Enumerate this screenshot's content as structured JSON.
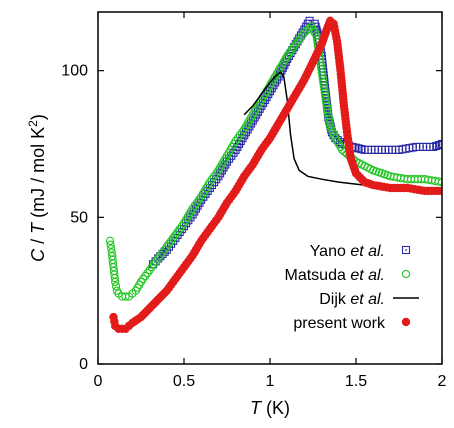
{
  "chart_data": {
    "type": "scatter",
    "xlim": [
      0,
      2
    ],
    "ylim": [
      0,
      120
    ],
    "xticks": [
      0,
      0.5,
      1,
      1.5,
      2
    ],
    "xtick_labels": [
      "0",
      "0.5",
      "1",
      "1.5",
      "2"
    ],
    "yticks": [
      0,
      50,
      100
    ],
    "ytick_labels": [
      "0",
      "50",
      "100"
    ],
    "xlabel": {
      "italic": "T",
      "rest": " (K)"
    },
    "ylabel": {
      "italic1": "C",
      "mid": " / ",
      "italic2": "T",
      "rest": " (mJ / mol K",
      "sup": "2",
      "close": ")"
    },
    "grid": false,
    "legend_position": "bottom-right",
    "series": [
      {
        "key": "yano",
        "name_plain": "Yano ",
        "name_italic": "et al.",
        "marker": "open-square-dot",
        "color": "#2a2aa8",
        "points": [
          [
            0.32,
            34
          ],
          [
            0.35,
            36
          ],
          [
            0.4,
            39
          ],
          [
            0.45,
            43
          ],
          [
            0.5,
            47
          ],
          [
            0.55,
            51
          ],
          [
            0.6,
            56
          ],
          [
            0.65,
            60
          ],
          [
            0.7,
            64
          ],
          [
            0.75,
            69
          ],
          [
            0.8,
            73
          ],
          [
            0.85,
            78
          ],
          [
            0.9,
            83
          ],
          [
            0.95,
            88
          ],
          [
            1.0,
            93
          ],
          [
            1.05,
            98
          ],
          [
            1.1,
            104
          ],
          [
            1.15,
            109
          ],
          [
            1.2,
            114
          ],
          [
            1.23,
            117
          ],
          [
            1.26,
            116
          ],
          [
            1.28,
            112
          ],
          [
            1.3,
            105
          ],
          [
            1.32,
            94
          ],
          [
            1.34,
            84
          ],
          [
            1.36,
            79
          ],
          [
            1.38,
            77
          ],
          [
            1.42,
            75
          ],
          [
            1.48,
            74
          ],
          [
            1.55,
            73
          ],
          [
            1.65,
            73
          ],
          [
            1.75,
            73
          ],
          [
            1.85,
            74
          ],
          [
            1.95,
            74
          ],
          [
            2.0,
            75
          ]
        ]
      },
      {
        "key": "matsuda",
        "name_plain": "Matsuda ",
        "name_italic": "et al.",
        "marker": "open-circle",
        "color": "#22c422",
        "points": [
          [
            0.07,
            42
          ],
          [
            0.08,
            38
          ],
          [
            0.09,
            33
          ],
          [
            0.1,
            28
          ],
          [
            0.11,
            25
          ],
          [
            0.12,
            24
          ],
          [
            0.14,
            23
          ],
          [
            0.16,
            23
          ],
          [
            0.18,
            23
          ],
          [
            0.2,
            24
          ],
          [
            0.22,
            25
          ],
          [
            0.25,
            28
          ],
          [
            0.3,
            32
          ],
          [
            0.35,
            36
          ],
          [
            0.4,
            40
          ],
          [
            0.45,
            44
          ],
          [
            0.5,
            48
          ],
          [
            0.55,
            53
          ],
          [
            0.6,
            57
          ],
          [
            0.65,
            62
          ],
          [
            0.7,
            66
          ],
          [
            0.75,
            71
          ],
          [
            0.8,
            76
          ],
          [
            0.85,
            80
          ],
          [
            0.9,
            85
          ],
          [
            0.95,
            90
          ],
          [
            1.0,
            95
          ],
          [
            1.05,
            100
          ],
          [
            1.1,
            105
          ],
          [
            1.15,
            109
          ],
          [
            1.2,
            113
          ],
          [
            1.24,
            115
          ],
          [
            1.27,
            112
          ],
          [
            1.29,
            104
          ],
          [
            1.31,
            96
          ],
          [
            1.33,
            88
          ],
          [
            1.35,
            81
          ],
          [
            1.38,
            77
          ],
          [
            1.42,
            73
          ],
          [
            1.5,
            69
          ],
          [
            1.6,
            66
          ],
          [
            1.7,
            64
          ],
          [
            1.8,
            63
          ],
          [
            1.9,
            63
          ],
          [
            2.0,
            62
          ]
        ]
      },
      {
        "key": "dijk",
        "name_plain": "Dijk ",
        "name_italic": "et al.",
        "marker": "line",
        "color": "#000000",
        "points": [
          [
            0.85,
            85
          ],
          [
            0.9,
            88
          ],
          [
            0.95,
            92
          ],
          [
            1.0,
            96
          ],
          [
            1.03,
            98
          ],
          [
            1.06,
            99.5
          ],
          [
            1.08,
            98
          ],
          [
            1.1,
            90
          ],
          [
            1.12,
            78
          ],
          [
            1.14,
            70
          ],
          [
            1.17,
            66
          ],
          [
            1.22,
            64
          ],
          [
            1.3,
            63
          ],
          [
            1.4,
            62
          ],
          [
            1.55,
            61
          ],
          [
            1.7,
            61
          ],
          [
            1.85,
            60
          ],
          [
            2.0,
            60
          ]
        ]
      },
      {
        "key": "present",
        "name_plain": "present work",
        "name_italic": "",
        "marker": "filled-circle",
        "color": "#e21b1b",
        "points": [
          [
            0.09,
            16
          ],
          [
            0.1,
            13
          ],
          [
            0.12,
            12
          ],
          [
            0.14,
            12
          ],
          [
            0.16,
            12
          ],
          [
            0.18,
            13
          ],
          [
            0.2,
            14
          ],
          [
            0.25,
            16
          ],
          [
            0.3,
            19
          ],
          [
            0.35,
            22
          ],
          [
            0.4,
            25
          ],
          [
            0.45,
            29
          ],
          [
            0.5,
            33
          ],
          [
            0.55,
            37
          ],
          [
            0.6,
            42
          ],
          [
            0.65,
            46
          ],
          [
            0.7,
            50
          ],
          [
            0.75,
            55
          ],
          [
            0.8,
            59
          ],
          [
            0.85,
            64
          ],
          [
            0.9,
            68
          ],
          [
            0.95,
            73
          ],
          [
            1.0,
            77
          ],
          [
            1.05,
            82
          ],
          [
            1.1,
            87
          ],
          [
            1.15,
            92
          ],
          [
            1.2,
            97
          ],
          [
            1.25,
            103
          ],
          [
            1.3,
            109
          ],
          [
            1.33,
            114
          ],
          [
            1.35,
            117
          ],
          [
            1.37,
            116
          ],
          [
            1.39,
            110
          ],
          [
            1.41,
            100
          ],
          [
            1.43,
            88
          ],
          [
            1.45,
            78
          ],
          [
            1.47,
            70
          ],
          [
            1.5,
            65
          ],
          [
            1.55,
            62
          ],
          [
            1.6,
            61
          ],
          [
            1.7,
            60
          ],
          [
            1.8,
            60
          ],
          [
            1.9,
            59
          ],
          [
            2.0,
            59
          ]
        ]
      }
    ]
  }
}
